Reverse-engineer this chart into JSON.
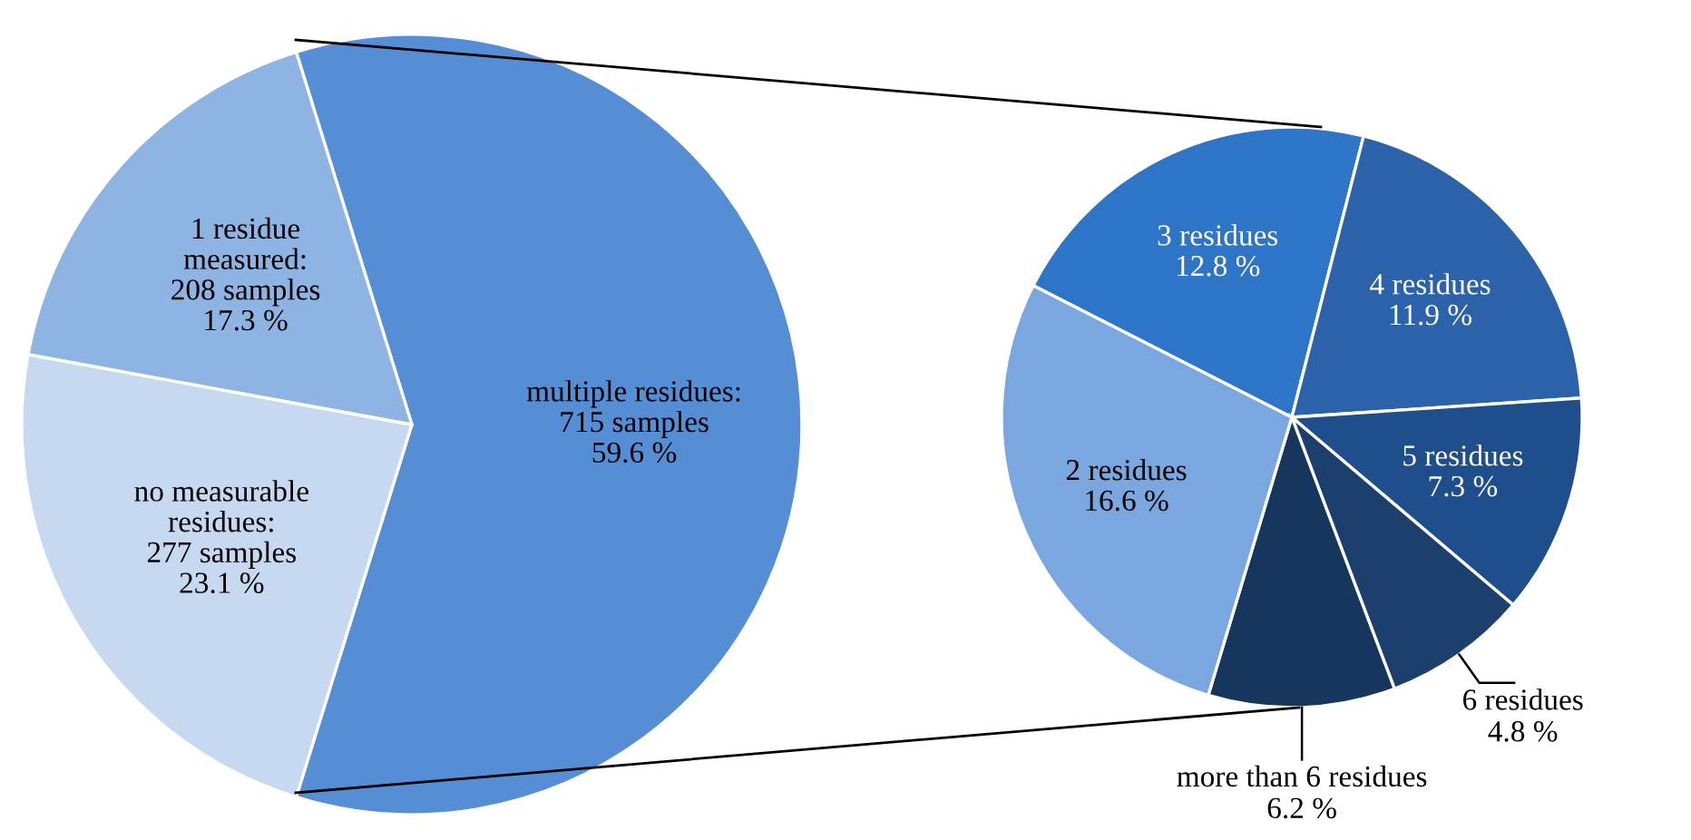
{
  "chart_data": [
    {
      "type": "pie",
      "categories": [
        "multiple residues:\n715 samples\n59.6 %",
        "no measurable\nresidues:\n277 samples\n23.1 %",
        "1 residue\nmeasured:\n208 samples\n17.3 %"
      ],
      "values": [
        715,
        277,
        208
      ],
      "colors": [
        "#558ed5",
        "#c6d9f1",
        "#8eb4e3"
      ]
    },
    {
      "type": "pie",
      "categories": [
        "3 residues",
        "4 residues",
        "5 residues",
        "6 residues",
        "more than 6 residues",
        "2 residues"
      ],
      "values": [
        12.8,
        11.9,
        7.3,
        4.8,
        6.2,
        16.6
      ],
      "value_labels": [
        "12.8 %",
        "11.9 %",
        "7.3 %",
        "4.8 %",
        "6.2 %",
        "16.6 %"
      ],
      "colors": [
        "#2e74c7",
        "#2b62aa",
        "#1f4e8c",
        "#1d3f6e",
        "#17365d",
        "#7aa7df"
      ]
    }
  ]
}
